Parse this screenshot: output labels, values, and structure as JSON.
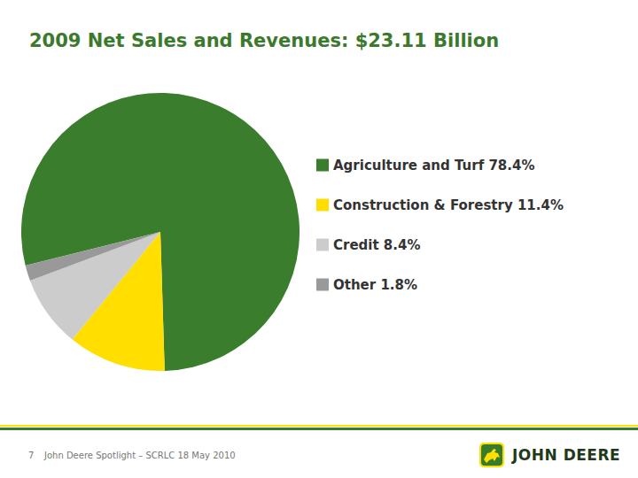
{
  "chart_data": {
    "type": "pie",
    "title": "2009 Net Sales and Revenues: $23.11 Billion",
    "categories": [
      "Agriculture and Turf 78.4%",
      "Construction & Forestry 11.4%",
      "Credit 8.4%",
      "Other 1.8%"
    ],
    "values": [
      78.4,
      11.4,
      8.4,
      1.8
    ],
    "colors": [
      "#3a7d2c",
      "#ffde00",
      "#cccccc",
      "#999999"
    ],
    "legend": "right"
  },
  "footer": {
    "page": "7",
    "text": "John Deere Spotlight – SCRLC 18 May 2010",
    "logo": "JOHN DEERE"
  }
}
